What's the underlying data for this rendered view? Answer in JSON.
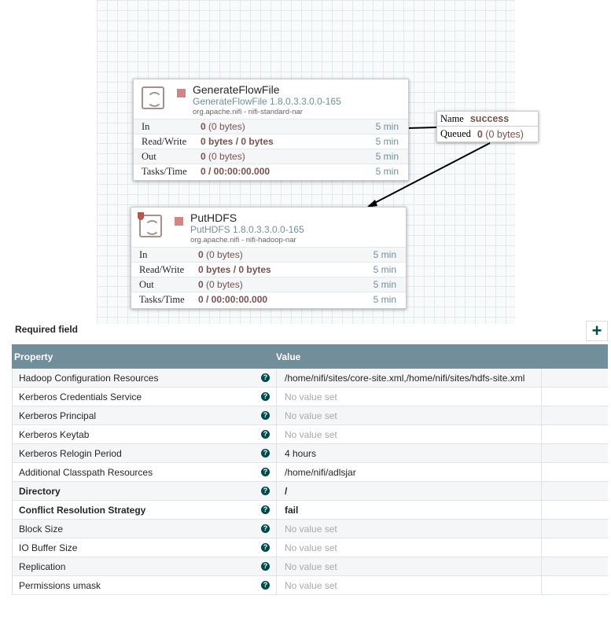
{
  "processors": [
    {
      "name": "GenerateFlowFile",
      "type": "GenerateFlowFile 1.8.0.3.3.0.0-165",
      "bundle": "org.apache.nifi - nifi-standard-nar",
      "stats": [
        {
          "label": "In",
          "value_bold": "0",
          "value_rest": " (0 bytes)",
          "time": "5 min"
        },
        {
          "label": "Read/Write",
          "value_bold": "0 bytes / 0 bytes",
          "value_rest": "",
          "time": "5 min"
        },
        {
          "label": "Out",
          "value_bold": "0",
          "value_rest": " (0 bytes)",
          "time": "5 min"
        },
        {
          "label": "Tasks/Time",
          "value_bold": "0 / 00:00:00.000",
          "value_rest": "",
          "time": "5 min"
        }
      ]
    },
    {
      "name": "PutHDFS",
      "type": "PutHDFS 1.8.0.3.3.0.0-165",
      "bundle": "org.apache.nifi - nifi-hadoop-nar",
      "stats": [
        {
          "label": "In",
          "value_bold": "0",
          "value_rest": " (0 bytes)",
          "time": "5 min"
        },
        {
          "label": "Read/Write",
          "value_bold": "0 bytes / 0 bytes",
          "value_rest": "",
          "time": "5 min"
        },
        {
          "label": "Out",
          "value_bold": "0",
          "value_rest": " (0 bytes)",
          "time": "5 min"
        },
        {
          "label": "Tasks/Time",
          "value_bold": "0 / 00:00:00.000",
          "value_rest": "",
          "time": "5 min"
        }
      ]
    }
  ],
  "connection": {
    "name_label": "Name",
    "name_value": "success",
    "queued_label": "Queued",
    "queued_bold": "0",
    "queued_rest": " (0 bytes)"
  },
  "required_field": "Required field",
  "table": {
    "headers": [
      "Property",
      "Value"
    ],
    "rows": [
      {
        "property": "Hadoop Configuration Resources",
        "value": "/home/nifi/sites/core-site.xml,/home/nifi/sites/hdfs-site.xml"
      },
      {
        "property": "Kerberos Credentials Service",
        "value": "No value set"
      },
      {
        "property": "Kerberos Principal",
        "value": "No value set"
      },
      {
        "property": "Kerberos Keytab",
        "value": "No value set"
      },
      {
        "property": "Kerberos Relogin Period",
        "value": "4 hours"
      },
      {
        "property": "Additional Classpath Resources",
        "value": "/home/nifi/adlsjar"
      },
      {
        "property": "Directory",
        "value": "/"
      },
      {
        "property": "Conflict Resolution Strategy",
        "value": "fail"
      },
      {
        "property": "Block Size",
        "value": "No value set"
      },
      {
        "property": "IO Buffer Size",
        "value": "No value set"
      },
      {
        "property": "Replication",
        "value": "No value set"
      },
      {
        "property": "Permissions umask",
        "value": "No value set"
      }
    ]
  },
  "colors": {
    "header": "#728e9b",
    "accent": "#004849",
    "stat_value": "#775351"
  }
}
